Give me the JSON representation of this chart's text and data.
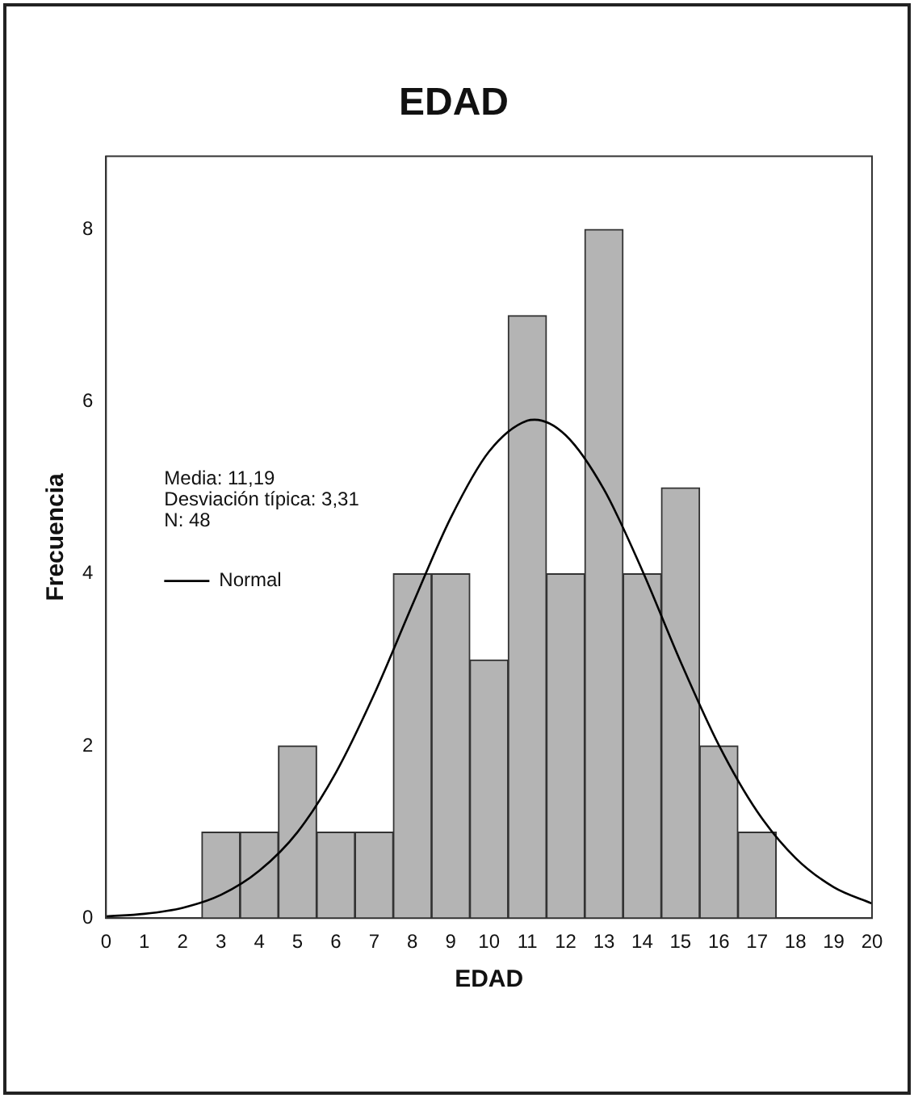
{
  "chart_data": {
    "type": "histogram",
    "title": "EDAD",
    "xlabel": "EDAD",
    "ylabel": "Frecuencia",
    "bins": [
      2.5,
      3.5,
      4.5,
      5.5,
      6.5,
      7.5,
      8.5,
      9.5,
      10.5,
      11.5,
      12.5,
      13.5,
      14.5,
      15.5,
      16.5,
      17.5
    ],
    "values": [
      1,
      1,
      2,
      1,
      1,
      4,
      4,
      3,
      7,
      4,
      8,
      4,
      5,
      2,
      1
    ],
    "color": "#b4b4b4",
    "series": [
      {
        "type": "line",
        "name": "Normal",
        "color": "#000000",
        "x": [
          0,
          1,
          2,
          3,
          4,
          5,
          6,
          7,
          8,
          9,
          10,
          11,
          11.19,
          12,
          13,
          14,
          15,
          16,
          17,
          18,
          19,
          20
        ],
        "values": [
          0.02,
          0.05,
          0.12,
          0.27,
          0.55,
          1.0,
          1.69,
          2.6,
          3.64,
          4.65,
          5.42,
          5.78,
          5.79,
          5.61,
          4.98,
          4.04,
          2.98,
          2.01,
          1.24,
          0.7,
          0.36,
          0.17
        ]
      }
    ],
    "xlim": [
      0,
      20
    ],
    "xticks": [
      0,
      1,
      2,
      3,
      4,
      5,
      6,
      7,
      8,
      9,
      10,
      11,
      12,
      13,
      14,
      15,
      16,
      17,
      18,
      19,
      20
    ],
    "ylim": [
      0,
      8.85
    ],
    "yticks": [
      0,
      2,
      4,
      6,
      8
    ],
    "grid": false,
    "legend": "left",
    "marker": "none",
    "line_style": "solid",
    "annotations": [
      "Media: 11,19",
      "Desviación típica: 3,31",
      "N: 48"
    ]
  }
}
